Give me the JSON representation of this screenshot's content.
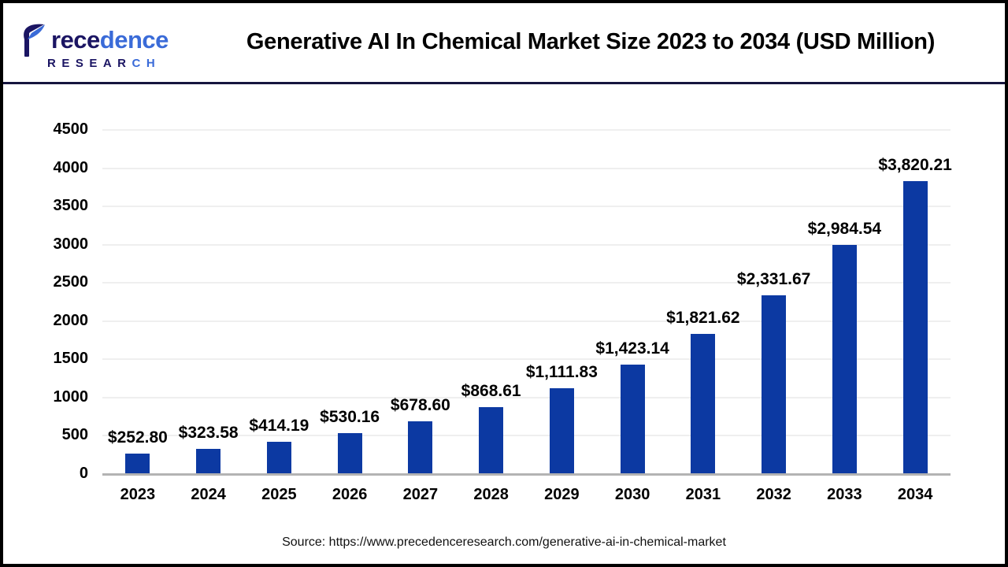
{
  "page": {
    "background": "#ffffff",
    "border_color": "#000000"
  },
  "header": {
    "title": "Generative AI In Chemical Market Size 2023 to 2034 (USD Million)",
    "separator_color": "#16153E",
    "logo": {
      "brand_word": "Precedence",
      "brand_icon": "leaf-p-icon",
      "brand_dark_part": "rece",
      "brand_light_part": "dence",
      "sub_word": "RESEARCH",
      "sub_word_dark": "RESEAR",
      "sub_word_light": "CH",
      "dark_color": "#1B1563",
      "light_color": "#3A6BD8"
    }
  },
  "chart_data": {
    "type": "bar",
    "title": "Generative AI In Chemical Market Size 2023 to 2034 (USD Million)",
    "unit": "USD Million",
    "categories": [
      "2023",
      "2024",
      "2025",
      "2026",
      "2027",
      "2028",
      "2029",
      "2030",
      "2031",
      "2032",
      "2033",
      "2034"
    ],
    "values": [
      252.8,
      323.58,
      414.19,
      530.16,
      678.6,
      868.61,
      1111.83,
      1423.14,
      1821.62,
      2331.67,
      2984.54,
      3820.21
    ],
    "labels": [
      "$252.80",
      "$323.58",
      "$414.19",
      "$530.16",
      "$678.60",
      "$868.61",
      "$1,111.83",
      "$1,423.14",
      "$1,821.62",
      "$2,331.67",
      "$2,984.54",
      "$3,820.21"
    ],
    "ylim": [
      0,
      4500
    ],
    "yticks": [
      0,
      500,
      1000,
      1500,
      2000,
      2500,
      3000,
      3500,
      4000,
      4500
    ],
    "grid": true,
    "legend_position": "none",
    "bar_color": "#0C39A2",
    "gridline_color": "#EFEFEF",
    "axis_line_color": "#B3B3B3",
    "text_color": "#000000"
  },
  "footer": {
    "source_text": "Source: https://www.precedenceresearch.com/generative-ai-in-chemical-market"
  }
}
